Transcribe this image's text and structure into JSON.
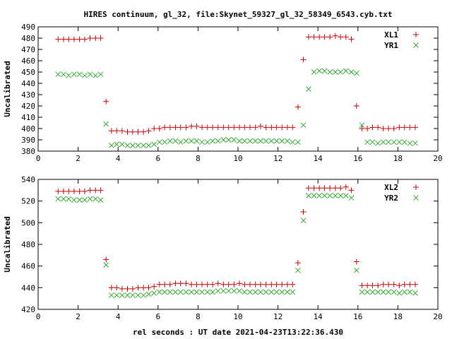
{
  "title": "HIRES continuum, gl_32, file:Skynet_59327_gl_32_58349_6543.cyb.txt",
  "xlabel": "rel seconds : UT date 2021-04-23T13:22:36.430",
  "colors": {
    "plus": "#cc0000",
    "cross": "#33aa33"
  },
  "chart_data": [
    {
      "type": "scatter",
      "ylabel": "Uncalibrated",
      "xlim": [
        0,
        20
      ],
      "ylim": [
        380,
        490
      ],
      "xticks": [
        0,
        2,
        4,
        6,
        8,
        10,
        12,
        14,
        16,
        18,
        20
      ],
      "yticks": [
        380,
        390,
        400,
        410,
        420,
        430,
        440,
        450,
        460,
        470,
        480,
        490
      ],
      "grid": false,
      "legend": "top-right",
      "series": [
        {
          "name": "XL1",
          "marker": "plus",
          "x": [
            1.0,
            1.27,
            1.53,
            1.8,
            2.07,
            2.33,
            2.6,
            2.87,
            3.13,
            3.4,
            3.67,
            3.93,
            4.2,
            4.47,
            4.73,
            5.0,
            5.27,
            5.53,
            5.8,
            6.07,
            6.33,
            6.6,
            6.87,
            7.13,
            7.4,
            7.67,
            7.93,
            8.2,
            8.47,
            8.73,
            9.0,
            9.27,
            9.53,
            9.8,
            10.07,
            10.33,
            10.6,
            10.87,
            11.13,
            11.4,
            11.67,
            11.93,
            12.2,
            12.47,
            12.73,
            13.0,
            13.27,
            13.53,
            13.8,
            14.07,
            14.33,
            14.6,
            14.87,
            15.13,
            15.4,
            15.67,
            15.93,
            16.2,
            16.47,
            16.73,
            17.0,
            17.27,
            17.53,
            17.8,
            18.07,
            18.33,
            18.6,
            18.87
          ],
          "y": [
            479,
            479,
            479,
            479,
            479,
            479,
            480,
            480,
            480,
            424,
            398,
            398,
            398,
            397,
            397,
            397,
            397,
            398,
            400,
            400,
            401,
            401,
            401,
            401,
            401,
            402,
            402,
            401,
            401,
            401,
            401,
            401,
            401,
            401,
            401,
            401,
            401,
            401,
            402,
            401,
            401,
            401,
            401,
            401,
            401,
            419,
            461,
            481,
            481,
            481,
            481,
            481,
            482,
            481,
            481,
            479,
            420,
            400,
            400,
            401,
            401,
            400,
            400,
            400,
            401,
            401,
            401,
            401
          ]
        },
        {
          "name": "YR1",
          "marker": "cross",
          "x": [
            1.0,
            1.27,
            1.53,
            1.8,
            2.07,
            2.33,
            2.6,
            2.87,
            3.13,
            3.4,
            3.67,
            3.93,
            4.2,
            4.47,
            4.73,
            5.0,
            5.27,
            5.53,
            5.8,
            6.07,
            6.33,
            6.6,
            6.87,
            7.13,
            7.4,
            7.67,
            7.93,
            8.2,
            8.47,
            8.73,
            9.0,
            9.27,
            9.53,
            9.8,
            10.07,
            10.33,
            10.6,
            10.87,
            11.13,
            11.4,
            11.67,
            11.93,
            12.2,
            12.47,
            12.73,
            13.0,
            13.27,
            13.53,
            13.8,
            14.07,
            14.33,
            14.6,
            14.87,
            15.13,
            15.4,
            15.67,
            15.93,
            16.2,
            16.47,
            16.73,
            17.0,
            17.27,
            17.53,
            17.8,
            18.07,
            18.33,
            18.6,
            18.87
          ],
          "y": [
            448,
            448,
            447,
            448,
            448,
            447,
            448,
            447,
            448,
            404,
            385,
            386,
            386,
            385,
            385,
            385,
            385,
            385,
            386,
            388,
            388,
            389,
            389,
            388,
            389,
            389,
            389,
            388,
            388,
            389,
            389,
            390,
            390,
            390,
            389,
            389,
            389,
            389,
            389,
            389,
            389,
            389,
            389,
            389,
            388,
            388,
            403,
            435,
            450,
            451,
            451,
            450,
            450,
            450,
            451,
            450,
            449,
            403,
            388,
            388,
            387,
            388,
            388,
            388,
            388,
            388,
            387,
            387
          ]
        }
      ]
    },
    {
      "type": "scatter",
      "ylabel": "Uncalibrated",
      "xlim": [
        0,
        20
      ],
      "ylim": [
        420,
        540
      ],
      "xticks": [
        0,
        2,
        4,
        6,
        8,
        10,
        12,
        14,
        16,
        18,
        20
      ],
      "yticks": [
        420,
        440,
        460,
        480,
        500,
        520,
        540
      ],
      "grid": false,
      "legend": "top-right",
      "series": [
        {
          "name": "XL2",
          "marker": "plus",
          "x": [
            1.0,
            1.27,
            1.53,
            1.8,
            2.07,
            2.33,
            2.6,
            2.87,
            3.13,
            3.4,
            3.67,
            3.93,
            4.2,
            4.47,
            4.73,
            5.0,
            5.27,
            5.53,
            5.8,
            6.07,
            6.33,
            6.6,
            6.87,
            7.13,
            7.4,
            7.67,
            7.93,
            8.2,
            8.47,
            8.73,
            9.0,
            9.27,
            9.53,
            9.8,
            10.07,
            10.33,
            10.6,
            10.87,
            11.13,
            11.4,
            11.67,
            11.93,
            12.2,
            12.47,
            12.73,
            13.0,
            13.27,
            13.53,
            13.8,
            14.07,
            14.33,
            14.6,
            14.87,
            15.13,
            15.4,
            15.67,
            15.93,
            16.2,
            16.47,
            16.73,
            17.0,
            17.27,
            17.53,
            17.8,
            18.07,
            18.33,
            18.6,
            18.87
          ],
          "y": [
            529,
            529,
            529,
            529,
            529,
            529,
            530,
            530,
            530,
            466,
            440,
            440,
            439,
            439,
            439,
            440,
            440,
            440,
            441,
            443,
            443,
            443,
            444,
            444,
            444,
            443,
            443,
            443,
            443,
            443,
            444,
            443,
            443,
            443,
            444,
            443,
            443,
            443,
            443,
            443,
            443,
            443,
            443,
            443,
            443,
            463,
            510,
            532,
            532,
            532,
            532,
            532,
            532,
            532,
            533,
            530,
            464,
            442,
            442,
            442,
            442,
            443,
            443,
            443,
            442,
            443,
            443,
            443
          ]
        },
        {
          "name": "YR2",
          "marker": "cross",
          "x": [
            1.0,
            1.27,
            1.53,
            1.8,
            2.07,
            2.33,
            2.6,
            2.87,
            3.13,
            3.4,
            3.67,
            3.93,
            4.2,
            4.47,
            4.73,
            5.0,
            5.27,
            5.53,
            5.8,
            6.07,
            6.33,
            6.6,
            6.87,
            7.13,
            7.4,
            7.67,
            7.93,
            8.2,
            8.47,
            8.73,
            9.0,
            9.27,
            9.53,
            9.8,
            10.07,
            10.33,
            10.6,
            10.87,
            11.13,
            11.4,
            11.67,
            11.93,
            12.2,
            12.47,
            12.73,
            13.0,
            13.27,
            13.53,
            13.8,
            14.07,
            14.33,
            14.6,
            14.87,
            15.13,
            15.4,
            15.67,
            15.93,
            16.2,
            16.47,
            16.73,
            17.0,
            17.27,
            17.53,
            17.8,
            18.07,
            18.33,
            18.6,
            18.87
          ],
          "y": [
            522,
            522,
            522,
            521,
            521,
            521,
            522,
            522,
            521,
            461,
            433,
            433,
            433,
            433,
            433,
            433,
            433,
            434,
            435,
            436,
            436,
            436,
            436,
            436,
            436,
            436,
            436,
            436,
            436,
            436,
            437,
            437,
            437,
            437,
            437,
            436,
            436,
            436,
            436,
            436,
            436,
            436,
            436,
            436,
            436,
            456,
            502,
            525,
            525,
            525,
            525,
            525,
            525,
            525,
            525,
            523,
            456,
            436,
            436,
            436,
            436,
            436,
            436,
            436,
            435,
            436,
            436,
            435
          ]
        }
      ]
    }
  ]
}
